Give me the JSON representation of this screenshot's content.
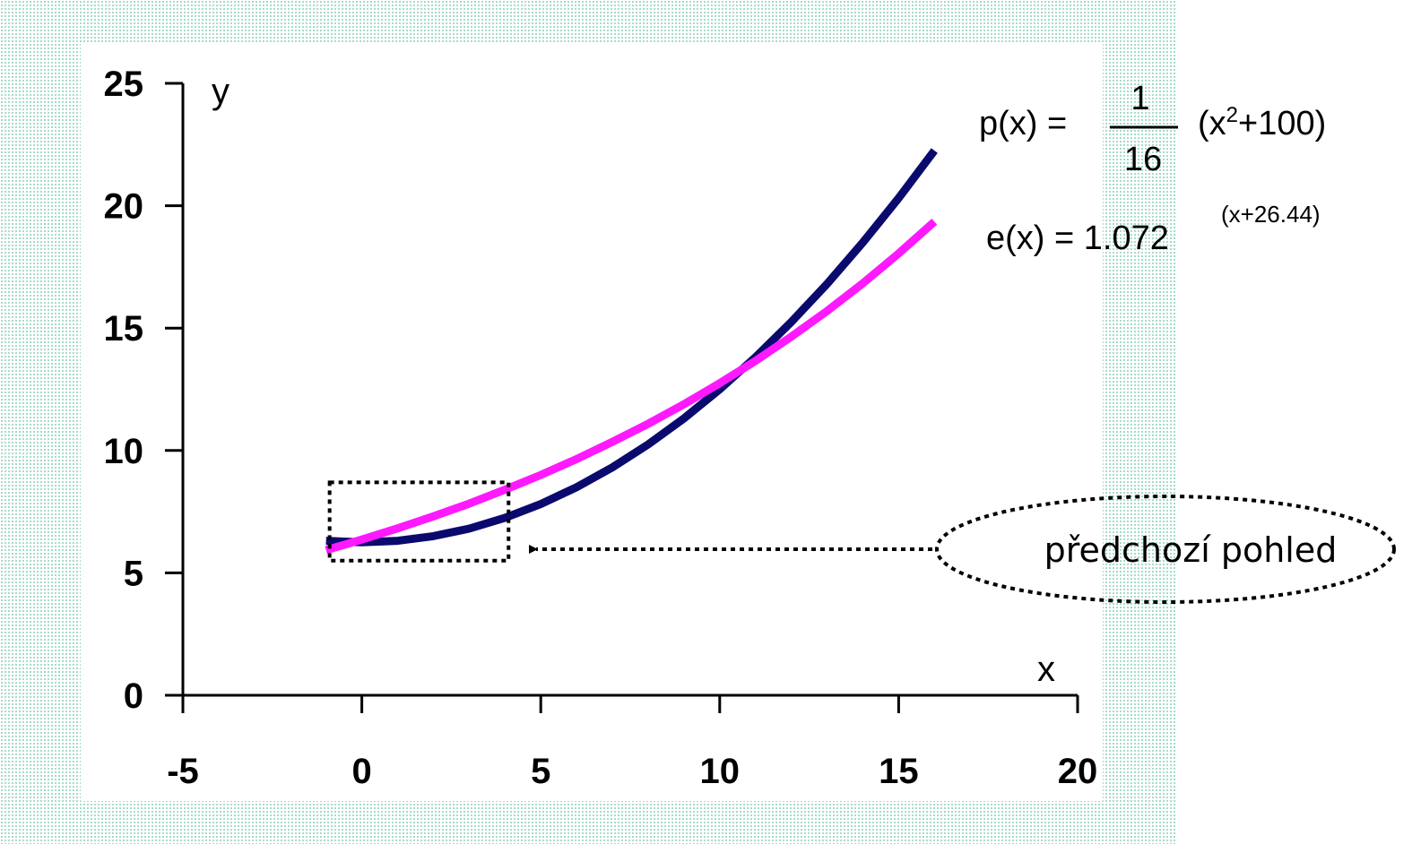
{
  "colors": {
    "p_series": "#0a0a6e",
    "e_series": "#ff19ff",
    "pattern": "#8fd3bd"
  },
  "chart_data": {
    "type": "line",
    "xlabel": "x",
    "ylabel": "y",
    "xlim": [
      -5,
      20
    ],
    "ylim": [
      0,
      25
    ],
    "x_ticks": [
      "-5",
      "0",
      "5",
      "10",
      "15",
      "20"
    ],
    "y_ticks": [
      "0",
      "5",
      "10",
      "15",
      "20",
      "25"
    ],
    "grid": false,
    "series": [
      {
        "x": [
          -1,
          0,
          1,
          2,
          3,
          4,
          5,
          6,
          7,
          8,
          9,
          10,
          11,
          12,
          13,
          14,
          15,
          16
        ],
        "values": [
          6.31,
          6.25,
          6.31,
          6.5,
          6.81,
          7.25,
          7.81,
          8.5,
          9.31,
          10.25,
          11.31,
          12.5,
          13.81,
          15.25,
          16.81,
          18.5,
          20.31,
          22.25
        ],
        "color": "#0a0a6e"
      },
      {
        "x": [
          -1,
          0,
          1,
          2,
          3,
          4,
          5,
          6,
          7,
          8,
          9,
          10,
          11,
          12,
          13,
          14,
          15,
          16
        ],
        "values": [
          5.93,
          6.36,
          6.82,
          7.31,
          7.83,
          8.4,
          9.0,
          9.65,
          10.35,
          11.09,
          11.89,
          12.75,
          13.66,
          14.65,
          15.7,
          16.83,
          18.05,
          19.35
        ],
        "color": "#ff19ff"
      }
    ],
    "annotations": {
      "p_formula": {
        "lhs": "p(x) =",
        "numerator": "1",
        "denominator": "16",
        "rhs_open": "(x",
        "rhs_exp": "2",
        "rhs_close": "+100)"
      },
      "e_formula": {
        "lhs": "e(x) = 1.072",
        "exponent": "(x+26.44)"
      },
      "previous_view_label": "předchozí pohled",
      "previous_view_box": {
        "x": [
          -0.9,
          4.1
        ],
        "y": [
          5.5,
          8.7
        ]
      }
    }
  }
}
